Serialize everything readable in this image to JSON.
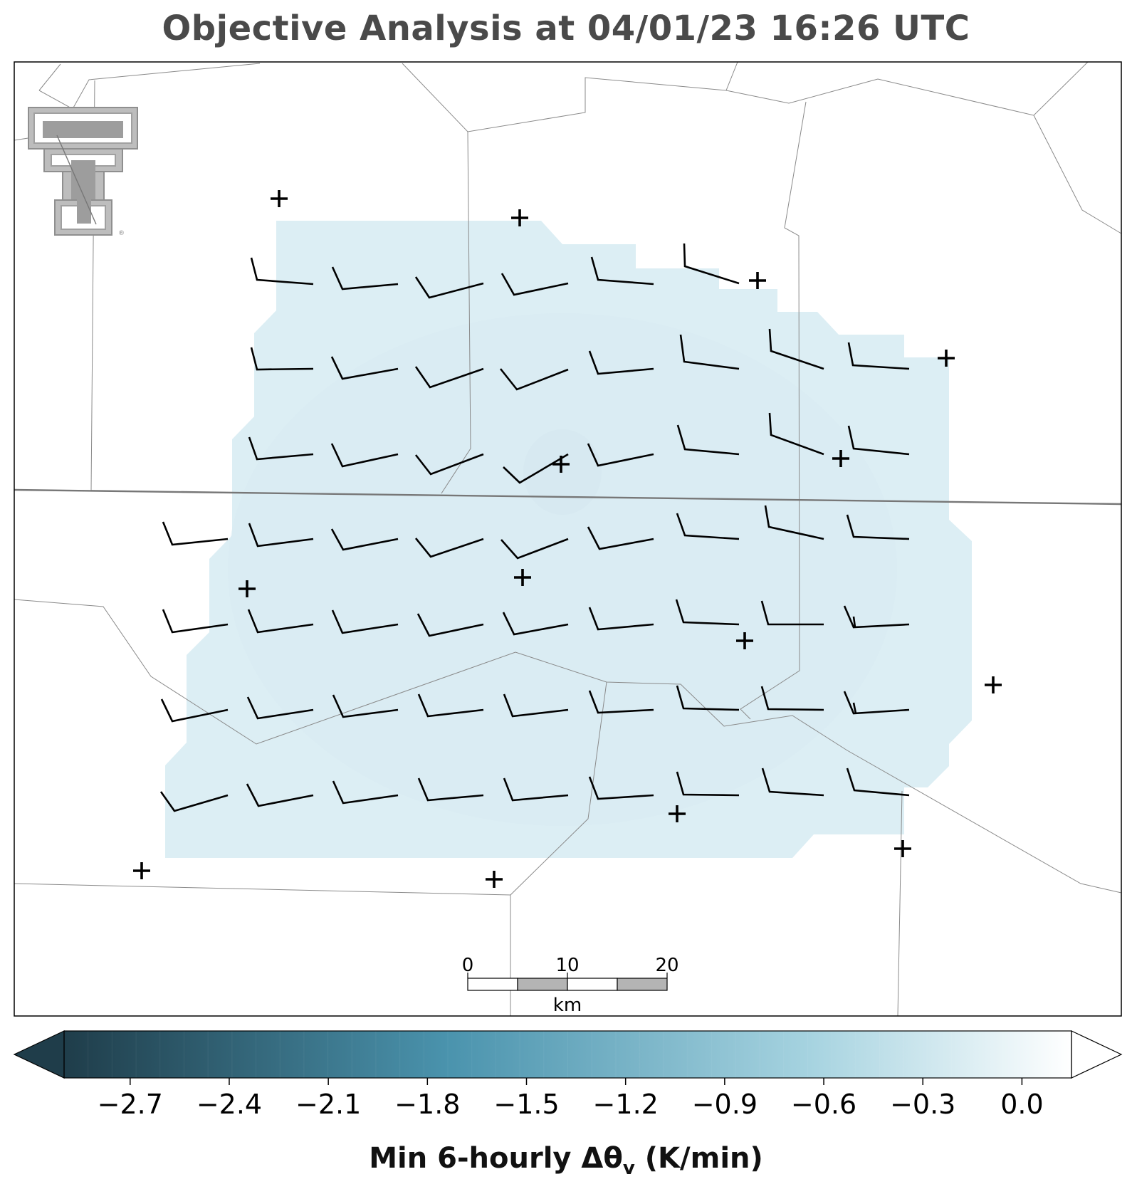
{
  "title": "Objective Analysis at 04/01/23 16:26 UTC",
  "colorbar": {
    "label_prefix": "Min 6-hourly Δθ",
    "label_sub": "v",
    "label_suffix": " (K/min)",
    "min": -2.9,
    "max": 0.15,
    "ticks": [
      "−2.7",
      "−2.4",
      "−2.1",
      "−1.8",
      "−1.5",
      "−1.2",
      "−0.9",
      "−0.6",
      "−0.3",
      "0.0"
    ],
    "tick_values": [
      -2.7,
      -2.4,
      -2.1,
      -1.8,
      -1.5,
      -1.2,
      -0.9,
      -0.6,
      -0.3,
      0.0
    ],
    "color_dark": "#1f3d4a",
    "color_mid": "#4a93ad",
    "color_light": "#a6d3e0",
    "color_white": "#ffffff"
  },
  "scalebar": {
    "labels": [
      "0",
      "10",
      "20"
    ],
    "unit": "km"
  },
  "logo": {
    "name": "texas-tech-double-t-logo",
    "mark": "®"
  },
  "field_color": "#dceef4",
  "station_icon": "plus-marker",
  "barb_icon": "wind-barb"
}
